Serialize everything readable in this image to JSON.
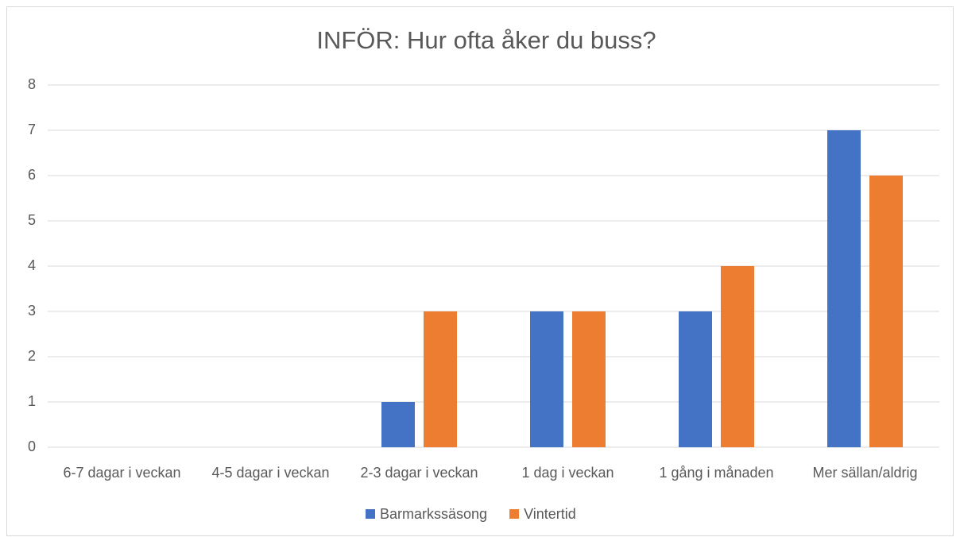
{
  "chart_data": {
    "type": "bar",
    "title": "INFÖR: Hur ofta åker du buss?",
    "categories": [
      "6-7 dagar i veckan",
      "4-5 dagar i veckan",
      "2-3 dagar i veckan",
      "1 dag i veckan",
      "1 gång i månaden",
      "Mer sällan/aldrig"
    ],
    "series": [
      {
        "name": "Barmarkssäsong",
        "color": "#4472c4",
        "values": [
          0,
          0,
          1,
          3,
          3,
          7
        ]
      },
      {
        "name": "Vintertid",
        "color": "#ed7d31",
        "values": [
          0,
          0,
          3,
          3,
          4,
          6
        ]
      }
    ],
    "ylim": [
      0,
      8
    ],
    "yticks": [
      0,
      1,
      2,
      3,
      4,
      5,
      6,
      7,
      8
    ],
    "grid": true,
    "legend": "bottom"
  }
}
